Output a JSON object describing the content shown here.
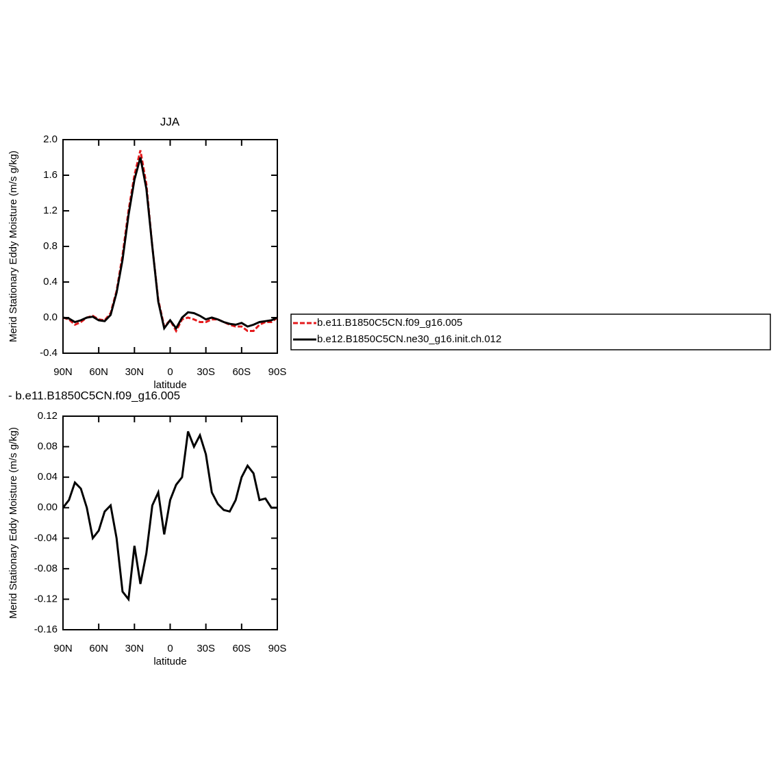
{
  "chart_data": [
    {
      "type": "line",
      "title": "JJA",
      "ylabel": "Merid Stationary Eddy Moisture (m/s g/kg)",
      "xlabel": "latitude",
      "x": [
        90,
        85,
        80,
        75,
        70,
        65,
        60,
        55,
        50,
        45,
        40,
        35,
        30,
        25,
        20,
        15,
        10,
        5,
        0,
        -5,
        -10,
        -15,
        -20,
        -25,
        -30,
        -35,
        -40,
        -45,
        -50,
        -55,
        -60,
        -65,
        -70,
        -75,
        -80,
        -85,
        -90
      ],
      "xlim": [
        90,
        -90
      ],
      "xticks": [
        {
          "value": 90,
          "label": "90N"
        },
        {
          "value": 60,
          "label": "60N"
        },
        {
          "value": 30,
          "label": "30N"
        },
        0,
        {
          "value": -30,
          "label": "30S"
        },
        {
          "value": -60,
          "label": "60S"
        },
        {
          "value": -90,
          "label": "90S"
        }
      ],
      "ylim": [
        -0.4,
        2.0
      ],
      "yticks": [
        -0.4,
        {
          "value": 0,
          "label": "0.0"
        },
        0.4,
        0.8,
        1.2,
        1.6,
        {
          "value": 2,
          "label": "2.0"
        }
      ],
      "series": [
        {
          "name": "b.e11.B1850C5CN.f09_g16.005",
          "color": "#e41a1c",
          "dashed": true,
          "values": [
            0.0,
            -0.02,
            -0.08,
            -0.05,
            0.0,
            0.02,
            -0.02,
            -0.03,
            0.05,
            0.3,
            0.7,
            1.2,
            1.6,
            1.88,
            1.5,
            0.8,
            0.2,
            -0.1,
            -0.03,
            -0.15,
            -0.02,
            0.0,
            -0.02,
            -0.05,
            -0.05,
            -0.02,
            -0.02,
            -0.05,
            -0.08,
            -0.1,
            -0.1,
            -0.15,
            -0.15,
            -0.08,
            -0.05,
            -0.05,
            0.0
          ]
        },
        {
          "name": "b.e12.B1850C5CN.ne30_g16.init.ch.012",
          "color": "#000000",
          "dashed": false,
          "values": [
            0.0,
            -0.01,
            -0.05,
            -0.03,
            0.0,
            0.01,
            -0.03,
            -0.04,
            0.03,
            0.28,
            0.65,
            1.15,
            1.55,
            1.8,
            1.45,
            0.8,
            0.18,
            -0.12,
            -0.03,
            -0.12,
            0.0,
            0.06,
            0.05,
            0.02,
            -0.02,
            0.0,
            -0.02,
            -0.05,
            -0.07,
            -0.08,
            -0.06,
            -0.1,
            -0.08,
            -0.05,
            -0.04,
            -0.03,
            0.0
          ]
        }
      ]
    },
    {
      "type": "line",
      "title": "- b.e11.B1850C5CN.f09_g16.005",
      "ylabel": "Merid Stationary Eddy Moisture (m/s g/kg)",
      "xlabel": "latitude",
      "x": [
        90,
        85,
        80,
        75,
        70,
        65,
        60,
        55,
        50,
        45,
        40,
        35,
        30,
        25,
        20,
        15,
        10,
        5,
        0,
        -5,
        -10,
        -15,
        -20,
        -25,
        -30,
        -35,
        -40,
        -45,
        -50,
        -55,
        -60,
        -65,
        -70,
        -75,
        -80,
        -85,
        -90
      ],
      "xlim": [
        90,
        -90
      ],
      "xticks": [
        {
          "value": 90,
          "label": "90N"
        },
        {
          "value": 60,
          "label": "60N"
        },
        {
          "value": 30,
          "label": "30N"
        },
        0,
        {
          "value": -30,
          "label": "30S"
        },
        {
          "value": -60,
          "label": "60S"
        },
        {
          "value": -90,
          "label": "90S"
        }
      ],
      "ylim": [
        -0.16,
        0.12
      ],
      "yticks": [
        -0.16,
        -0.12,
        -0.08,
        -0.04,
        {
          "value": 0,
          "label": "0.00"
        },
        0.04,
        0.08,
        0.12
      ],
      "series": [
        {
          "color": "#000000",
          "dashed": false,
          "values": [
            0.0,
            0.01,
            0.033,
            0.025,
            0.0,
            -0.04,
            -0.03,
            -0.005,
            0.003,
            -0.04,
            -0.11,
            -0.12,
            -0.05,
            -0.1,
            -0.06,
            0.003,
            0.02,
            -0.035,
            0.01,
            0.03,
            0.04,
            0.1,
            0.08,
            0.095,
            0.07,
            0.02,
            0.005,
            -0.003,
            -0.005,
            0.01,
            0.04,
            0.055,
            0.045,
            0.01,
            0.012,
            0.0,
            0.0
          ]
        }
      ]
    }
  ]
}
